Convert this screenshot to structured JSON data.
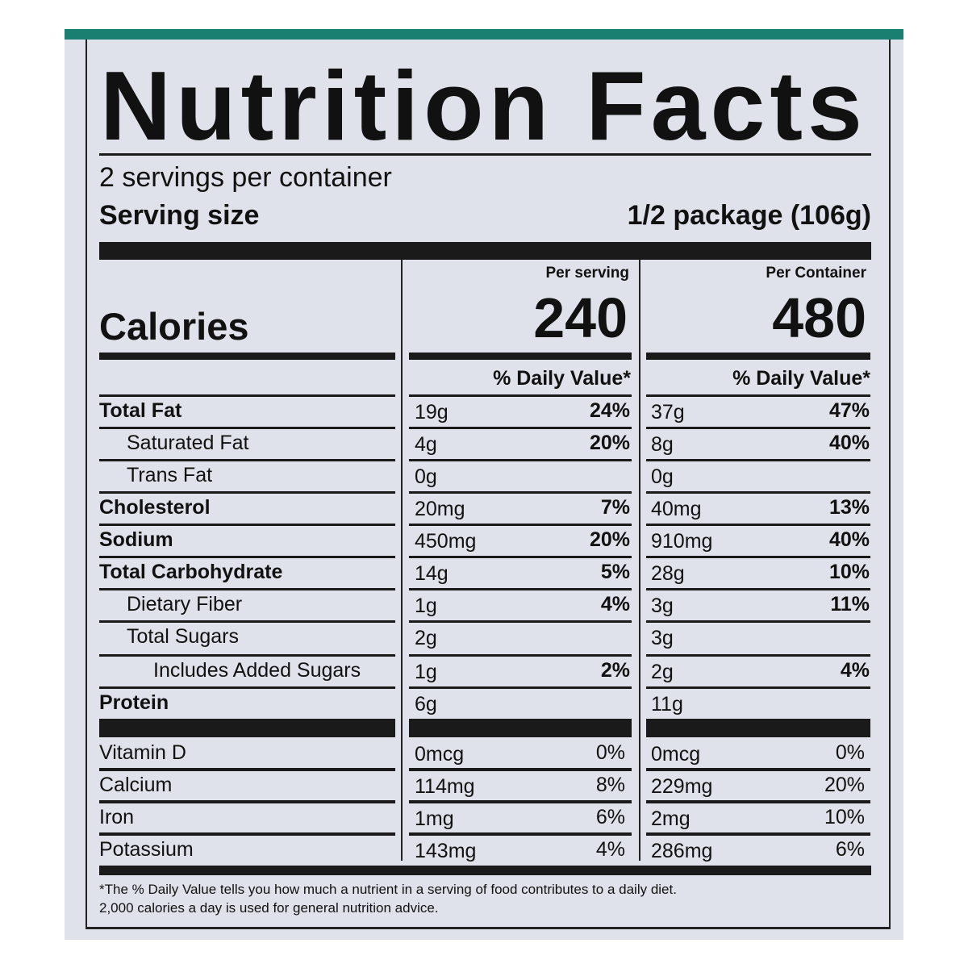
{
  "colors": {
    "teal_band": "#1a7f70",
    "panel": "#dfe2ea"
  },
  "title": "Nutrition Facts",
  "servings_per_container": "2 servings per container",
  "serving_size_label": "Serving size",
  "serving_size_value": "1/2 package (106g)",
  "calories_label": "Calories",
  "per_serving_label": "Per serving",
  "per_container_label": "Per Container",
  "calories_per_serving": "240",
  "calories_per_container": "480",
  "daily_value_header": "% Daily Value*",
  "nutrients": [
    {
      "name": "Total Fat",
      "indent": 0,
      "bold": true,
      "s_amt": "19g",
      "s_dv": "24%",
      "c_amt": "37g",
      "c_dv": "47%"
    },
    {
      "name": "Saturated Fat",
      "indent": 1,
      "bold": false,
      "s_amt": "4g",
      "s_dv": "20%",
      "c_amt": "8g",
      "c_dv": "40%"
    },
    {
      "name": "Trans Fat",
      "indent": 1,
      "bold": false,
      "s_amt": "0g",
      "s_dv": "",
      "c_amt": "0g",
      "c_dv": ""
    },
    {
      "name": "Cholesterol",
      "indent": 0,
      "bold": true,
      "s_amt": "20mg",
      "s_dv": "7%",
      "c_amt": "40mg",
      "c_dv": "13%"
    },
    {
      "name": "Sodium",
      "indent": 0,
      "bold": true,
      "s_amt": "450mg",
      "s_dv": "20%",
      "c_amt": "910mg",
      "c_dv": "40%"
    },
    {
      "name": "Total Carbohydrate",
      "indent": 0,
      "bold": true,
      "s_amt": "14g",
      "s_dv": "5%",
      "c_amt": "28g",
      "c_dv": "10%"
    },
    {
      "name": "Dietary Fiber",
      "indent": 1,
      "bold": false,
      "s_amt": "1g",
      "s_dv": "4%",
      "c_amt": "3g",
      "c_dv": "11%"
    },
    {
      "name": "Total Sugars",
      "indent": 1,
      "bold": false,
      "s_amt": "2g",
      "s_dv": "",
      "c_amt": "3g",
      "c_dv": ""
    },
    {
      "name": "Includes Added Sugars",
      "indent": 2,
      "bold": false,
      "s_amt": "1g",
      "s_dv": "2%",
      "c_amt": "2g",
      "c_dv": "4%"
    },
    {
      "name": "Protein",
      "indent": 0,
      "bold": true,
      "s_amt": "6g",
      "s_dv": "",
      "c_amt": "11g",
      "c_dv": ""
    }
  ],
  "vitamins": [
    {
      "name": "Vitamin D",
      "s_amt": "0mcg",
      "s_dv": "0%",
      "c_amt": "0mcg",
      "c_dv": "0%"
    },
    {
      "name": "Calcium",
      "s_amt": "114mg",
      "s_dv": "8%",
      "c_amt": "229mg",
      "c_dv": "20%"
    },
    {
      "name": "Iron",
      "s_amt": "1mg",
      "s_dv": "6%",
      "c_amt": "2mg",
      "c_dv": "10%"
    },
    {
      "name": "Potassium",
      "s_amt": "143mg",
      "s_dv": "4%",
      "c_amt": "286mg",
      "c_dv": "6%"
    }
  ],
  "footnote_line1": "*The % Daily Value tells you how much a nutrient in a serving of food contributes to a daily diet.",
  "footnote_line2": "2,000 calories a day is used for general nutrition advice."
}
